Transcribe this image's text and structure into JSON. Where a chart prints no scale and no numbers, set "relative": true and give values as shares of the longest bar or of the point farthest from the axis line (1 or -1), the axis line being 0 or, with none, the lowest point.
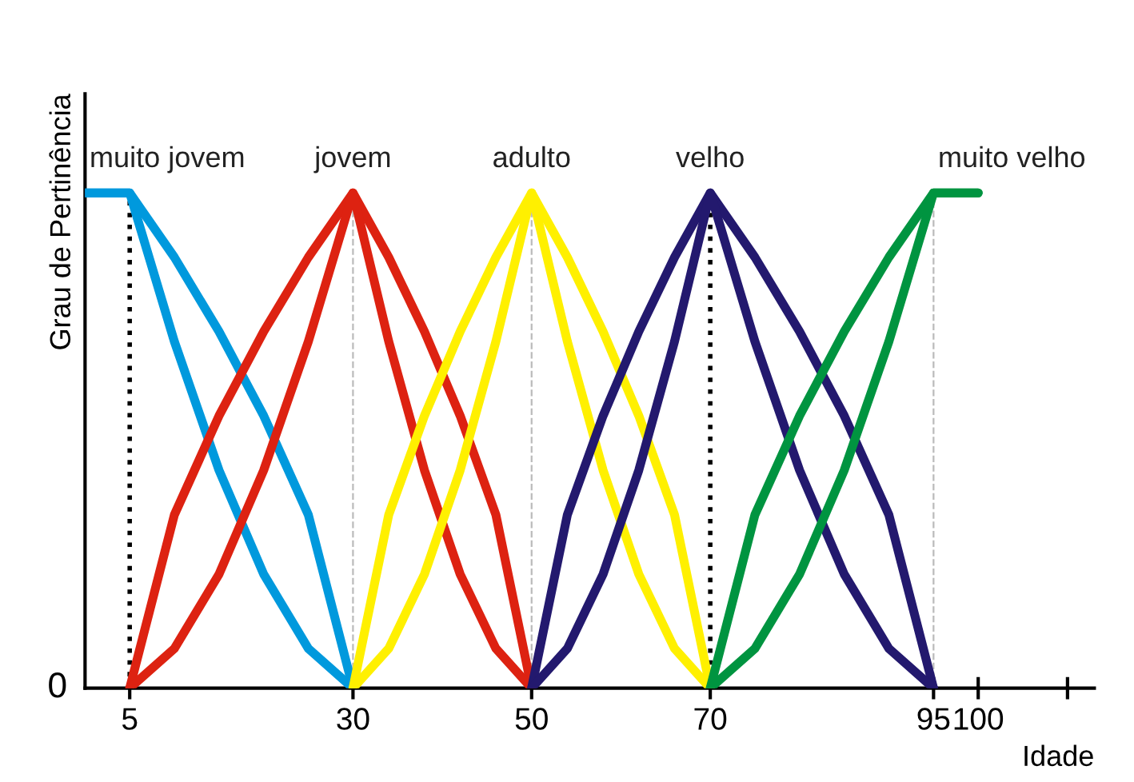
{
  "chart_data": {
    "type": "line",
    "relative": true,
    "xlabel": "Idade",
    "ylabel": "Grau de Pertinência",
    "xlim": [
      0,
      113
    ],
    "xticks": [
      5,
      30,
      50,
      70,
      95,
      100,
      {
        "value": 110,
        "label": null
      }
    ],
    "legend": false,
    "grid": false,
    "marker": "none",
    "line_style": "solid",
    "tick_labels": "x",
    "annotations": [
      "0"
    ],
    "ref_lines": [
      {
        "axis": "x",
        "value": 5,
        "color": "#000000",
        "line_style": "dotted"
      },
      {
        "axis": "x",
        "value": 70,
        "color": "#000000",
        "line_style": "dotted"
      },
      {
        "axis": "x",
        "value": 30,
        "color": "#bbbbbb",
        "line_style": "dashed"
      },
      {
        "axis": "x",
        "value": 50,
        "color": "#bbbbbb",
        "line_style": "dashed"
      },
      {
        "axis": "x",
        "value": 95,
        "color": "#bbbbbb",
        "line_style": "dashed"
      }
    ],
    "series": [
      {
        "name": "muito jovem",
        "color": "#0099dd",
        "x": [
          0,
          5,
          10,
          15,
          20,
          25,
          30
        ],
        "values": [
          1,
          1,
          0.87,
          0.72,
          0.55,
          0.35,
          0
        ]
      },
      {
        "color": "#0099dd",
        "x": [
          0,
          5,
          10,
          15,
          20,
          25,
          30
        ],
        "values": [
          1,
          1,
          0.7,
          0.44,
          0.23,
          0.08,
          0
        ]
      },
      {
        "name": "jovem",
        "color": "#dd2211",
        "x": [
          5,
          10,
          15,
          20,
          25,
          30,
          34,
          38,
          42,
          46,
          50
        ],
        "values": [
          0,
          0.35,
          0.55,
          0.72,
          0.87,
          1,
          0.87,
          0.72,
          0.55,
          0.35,
          0
        ]
      },
      {
        "color": "#dd2211",
        "x": [
          5,
          10,
          15,
          20,
          25,
          30,
          34,
          38,
          42,
          46,
          50
        ],
        "values": [
          0,
          0.08,
          0.23,
          0.44,
          0.7,
          1,
          0.7,
          0.44,
          0.23,
          0.08,
          0
        ]
      },
      {
        "name": "adulto",
        "color": "#fff000",
        "x": [
          30,
          34,
          38,
          42,
          46,
          50,
          54,
          58,
          62,
          66,
          70
        ],
        "values": [
          0,
          0.35,
          0.55,
          0.72,
          0.87,
          1,
          0.87,
          0.72,
          0.55,
          0.35,
          0
        ]
      },
      {
        "color": "#fff000",
        "x": [
          30,
          34,
          38,
          42,
          46,
          50,
          54,
          58,
          62,
          66,
          70
        ],
        "values": [
          0,
          0.08,
          0.23,
          0.44,
          0.7,
          1,
          0.7,
          0.44,
          0.23,
          0.08,
          0
        ]
      },
      {
        "name": "velho",
        "color": "#23196e",
        "x": [
          50,
          54,
          58,
          62,
          66,
          70,
          75,
          80,
          85,
          90,
          95
        ],
        "values": [
          0,
          0.35,
          0.55,
          0.72,
          0.87,
          1,
          0.87,
          0.72,
          0.55,
          0.35,
          0
        ]
      },
      {
        "color": "#23196e",
        "x": [
          50,
          54,
          58,
          62,
          66,
          70,
          75,
          80,
          85,
          90,
          95
        ],
        "values": [
          0,
          0.08,
          0.23,
          0.44,
          0.7,
          1,
          0.7,
          0.44,
          0.23,
          0.08,
          0
        ]
      },
      {
        "name": "muito velho",
        "color": "#009440",
        "x": [
          70,
          75,
          80,
          85,
          90,
          95,
          100
        ],
        "values": [
          0,
          0.35,
          0.55,
          0.72,
          0.87,
          1,
          1
        ]
      },
      {
        "color": "#009440",
        "x": [
          70,
          75,
          80,
          85,
          90,
          95,
          100
        ],
        "values": [
          0,
          0.08,
          0.23,
          0.44,
          0.7,
          1,
          1
        ]
      }
    ]
  }
}
